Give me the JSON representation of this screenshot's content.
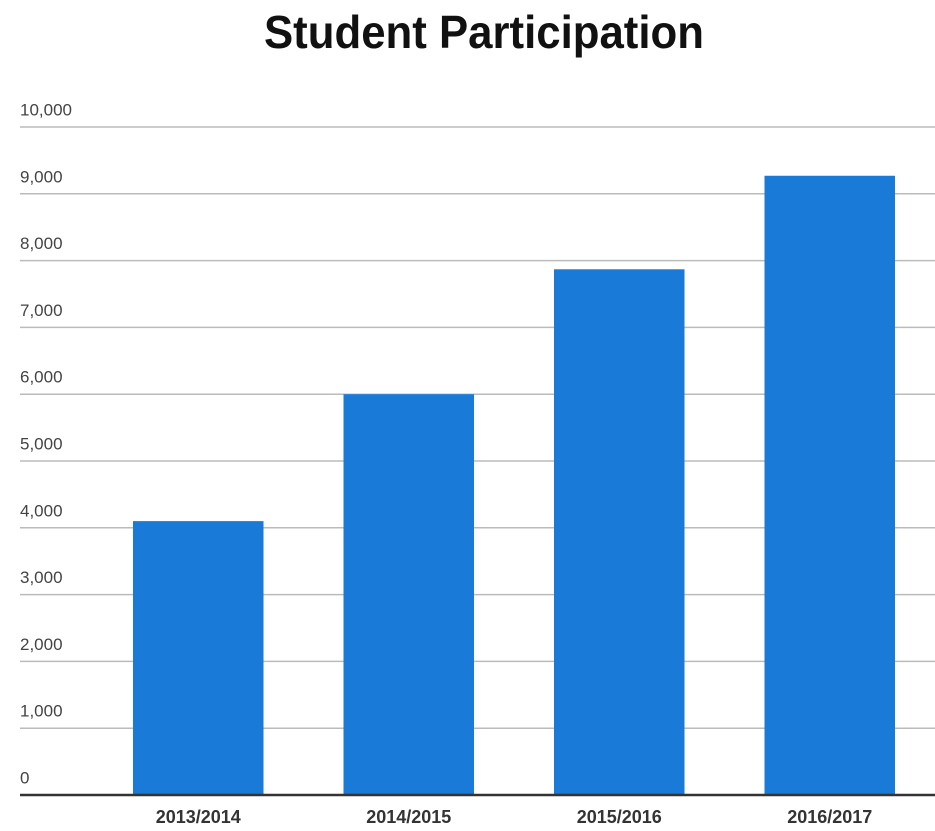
{
  "chart_data": {
    "type": "bar",
    "title": "Student Participation",
    "categories": [
      "2013/2014",
      "2014/2015",
      "2015/2016",
      "2016/2017"
    ],
    "values": [
      4100,
      6000,
      7870,
      9270
    ],
    "color": "#1a7ad8",
    "ylim": [
      0,
      10000
    ],
    "yticks": [
      0,
      {
        "value": 1000,
        "label": "1,000"
      },
      {
        "value": 2000,
        "label": "2,000"
      },
      {
        "value": 3000,
        "label": "3,000"
      },
      {
        "value": 4000,
        "label": "4,000"
      },
      {
        "value": 5000,
        "label": "5,000"
      },
      {
        "value": 6000,
        "label": "6,000"
      },
      {
        "value": 7000,
        "label": "7,000"
      },
      {
        "value": 8000,
        "label": "8,000"
      },
      {
        "value": 9000,
        "label": "9,000"
      },
      {
        "value": 10000,
        "label": "10,000"
      }
    ],
    "grid": true
  }
}
